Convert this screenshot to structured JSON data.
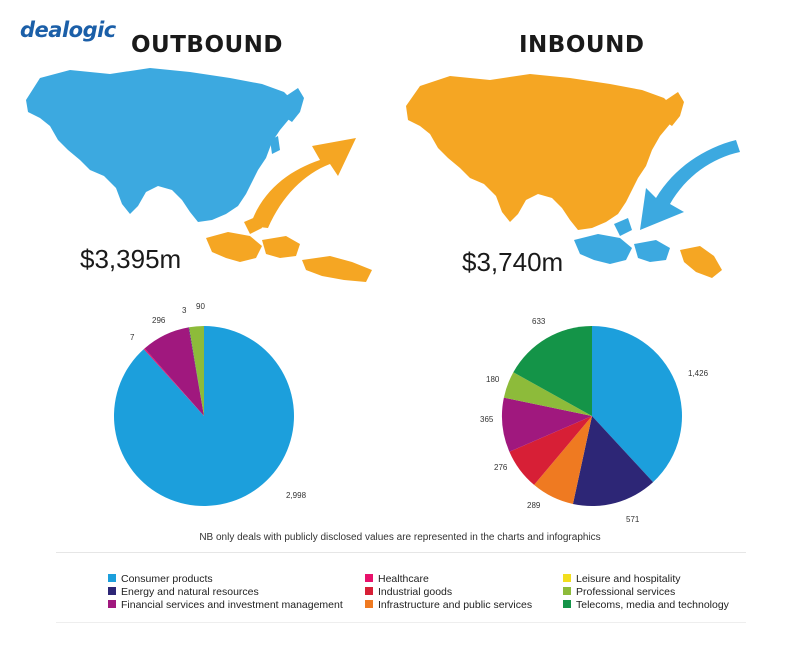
{
  "logo": "dealogic",
  "outbound": {
    "title": "OUTBOUND",
    "amount": "$3,395m",
    "region_color": "#3ca9e0",
    "highlight_color": "#f5a623",
    "arrow_icon": "arrow-up-right-icon"
  },
  "inbound": {
    "title": "INBOUND",
    "amount": "$3,740m",
    "region_color": "#f5a623",
    "highlight_color": "#3ca9e0",
    "arrow_icon": "arrow-down-left-icon"
  },
  "note": "NB only deals with publicly disclosed values are represented in the charts and infographics",
  "colors": {
    "Consumer products": "#1c9fdc",
    "Energy and natural resources": "#2d2676",
    "Financial services and investment management": "#a0187e",
    "Healthcare": "#e8116b",
    "Industrial goods": "#d71f36",
    "Infrastructure and public services": "#ef7a21",
    "Leisure and hospitality": "#f2de1e",
    "Professional services": "#8dbb3a",
    "Telecoms, media and technology": "#149448"
  },
  "legend": [
    "Consumer products",
    "Energy and natural resources",
    "Financial services and investment management",
    "Healthcare",
    "Industrial goods",
    "Infrastructure and public services",
    "Leisure and hospitality",
    "Professional services",
    "Telecoms, media and technology"
  ],
  "chart_data": [
    {
      "type": "pie",
      "title": "",
      "slices": [
        {
          "label": "Consumer products",
          "value": 2998,
          "label_text": "2,998"
        },
        {
          "label": "Healthcare",
          "value": 7,
          "label_text": "7"
        },
        {
          "label": "Financial services and investment management",
          "value": 296,
          "label_text": "296"
        },
        {
          "label": "Energy and natural resources",
          "value": 3,
          "label_text": "3"
        },
        {
          "label": "Professional services",
          "value": 90,
          "label_text": "90"
        }
      ]
    },
    {
      "type": "pie",
      "title": "",
      "slices": [
        {
          "label": "Consumer products",
          "value": 1426,
          "label_text": "1,426"
        },
        {
          "label": "Energy and natural resources",
          "value": 571,
          "label_text": "571"
        },
        {
          "label": "Infrastructure and public services",
          "value": 289,
          "label_text": "289"
        },
        {
          "label": "Industrial goods",
          "value": 276,
          "label_text": "276"
        },
        {
          "label": "Financial services and investment management",
          "value": 365,
          "label_text": "365"
        },
        {
          "label": "Professional services",
          "value": 180,
          "label_text": "180"
        },
        {
          "label": "Telecoms, media and technology",
          "value": 633,
          "label_text": "633"
        }
      ]
    }
  ]
}
